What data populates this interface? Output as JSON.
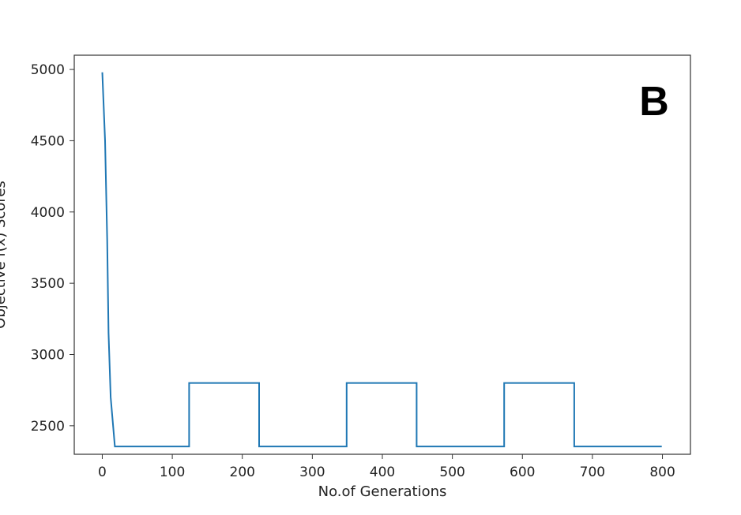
{
  "chart_data": {
    "type": "line",
    "title": "",
    "panel_label": "B",
    "xlabel": "No.of Generations",
    "ylabel": "Objective f(x) Scores",
    "xlim": [
      -40,
      840
    ],
    "ylim": [
      2300,
      5100
    ],
    "x_ticks": [
      0,
      100,
      200,
      300,
      400,
      500,
      600,
      700,
      800
    ],
    "y_ticks": [
      2500,
      3000,
      3500,
      4000,
      4500,
      5000
    ],
    "grid": false,
    "legend": "none",
    "series": [
      {
        "color": "#1f77b4",
        "points": [
          [
            0,
            4980
          ],
          [
            4,
            4500
          ],
          [
            7,
            3800
          ],
          [
            9,
            3150
          ],
          [
            12,
            2700
          ],
          [
            18,
            2355
          ],
          [
            124,
            2355
          ],
          [
            124,
            2800
          ],
          [
            224,
            2800
          ],
          [
            224,
            2355
          ],
          [
            349,
            2355
          ],
          [
            349,
            2800
          ],
          [
            449,
            2800
          ],
          [
            449,
            2355
          ],
          [
            574,
            2355
          ],
          [
            574,
            2800
          ],
          [
            674,
            2800
          ],
          [
            674,
            2355
          ],
          [
            799,
            2355
          ]
        ]
      }
    ]
  }
}
